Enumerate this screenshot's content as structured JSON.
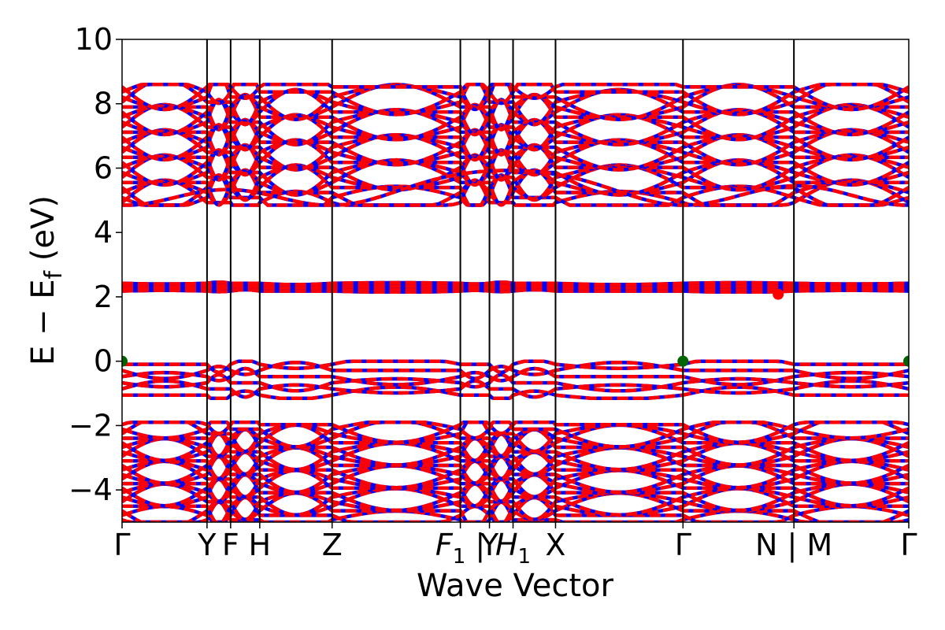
{
  "chart_data": {
    "type": "line",
    "xlabel": "Wave Vector",
    "ylabel_parts": {
      "main": "E − E",
      "sub": "f",
      "unit": " (eV)"
    },
    "ylim": [
      -5,
      10
    ],
    "yticks": [
      -4,
      -2,
      0,
      2,
      4,
      6,
      8,
      10
    ],
    "ytick_labels": [
      "−4",
      "−2",
      "0",
      "2",
      "4",
      "6",
      "8",
      "10"
    ],
    "xlim": [
      0,
      1
    ],
    "kpoints": [
      {
        "x": 0.0,
        "label": "Γ"
      },
      {
        "x": 0.108,
        "label": "Y"
      },
      {
        "x": 0.138,
        "label": "F"
      },
      {
        "x": 0.175,
        "label": "H"
      },
      {
        "x": 0.267,
        "label": "Z"
      },
      {
        "x": 0.43,
        "label": "F",
        "sub": "1",
        "suffix": " |"
      },
      {
        "x": 0.467,
        "label": "Y"
      },
      {
        "x": 0.497,
        "label": "H",
        "sub": "1"
      },
      {
        "x": 0.551,
        "label": "X"
      },
      {
        "x": 0.713,
        "label": "Γ"
      },
      {
        "x": 0.854,
        "label": "N | M"
      },
      {
        "x": 1.0,
        "label": "Γ"
      }
    ],
    "colors": {
      "spin_up": "#0000ff",
      "spin_down": "#ff0000",
      "vbm": "#006400",
      "cbm": "#ff0000"
    },
    "band_groups": [
      {
        "name": "",
        "range": [
          -5.0,
          -1.9
        ]
      },
      {
        "name": "",
        "range": [
          -1.15,
          0.0
        ]
      },
      {
        "name": "",
        "range": [
          2.15,
          2.45
        ]
      },
      {
        "name": "",
        "range": [
          4.85,
          8.6
        ]
      }
    ],
    "vbm_points": [
      {
        "x": 0.0,
        "y": 0.0
      },
      {
        "x": 0.713,
        "y": 0.0
      },
      {
        "x": 1.0,
        "y": 0.0
      }
    ],
    "cbm_points": [
      {
        "x": 0.834,
        "y": 2.08
      }
    ]
  }
}
